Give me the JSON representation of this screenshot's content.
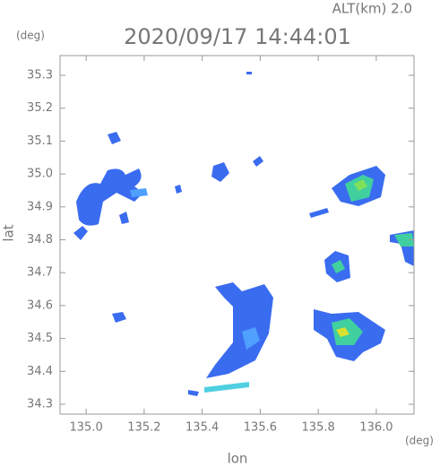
{
  "header": {
    "altitude": "ALT(km) 2.0",
    "timestamp": "2020/09/17 14:44:01",
    "y_unit": "(deg)",
    "x_unit": "(deg)"
  },
  "axes": {
    "xlabel": "lon",
    "ylabel": "lat",
    "xlim": [
      134.91,
      136.13
    ],
    "ylim": [
      34.27,
      35.36
    ],
    "xticks": [
      {
        "value": 135,
        "label": "135.0"
      },
      135.2,
      135.4,
      135.6,
      135.8,
      {
        "value": 136,
        "label": "136.0"
      }
    ],
    "yticks": [
      34.3,
      34.4,
      34.5,
      34.6,
      34.7,
      34.8,
      34.9,
      {
        "value": 35,
        "label": "35.0"
      },
      35.1,
      35.2,
      35.3
    ]
  }
}
